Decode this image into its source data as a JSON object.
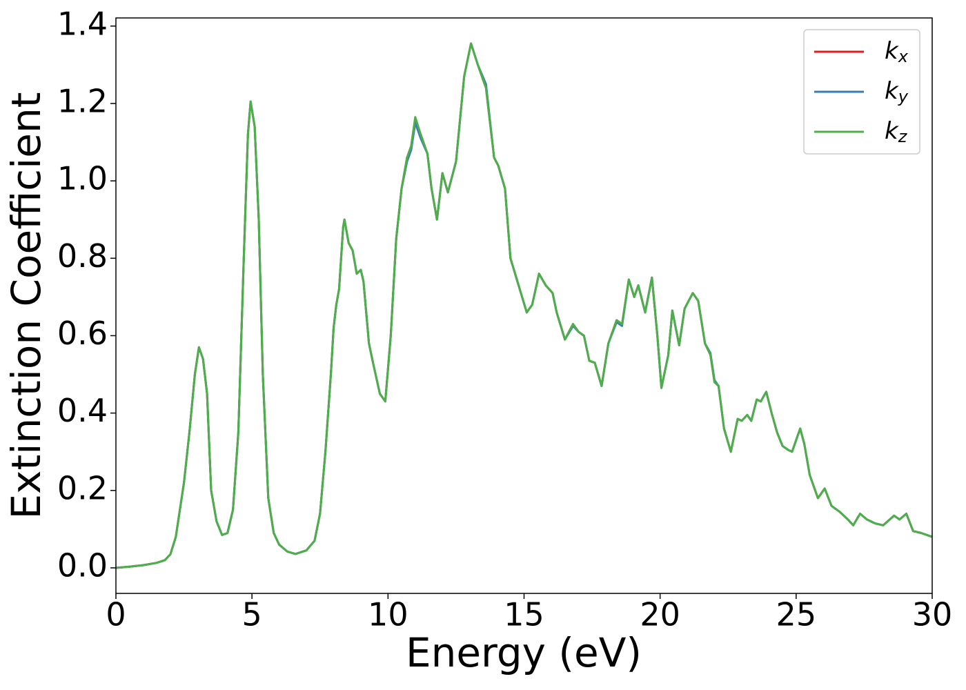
{
  "chart_data": {
    "type": "line",
    "xlabel": "Energy (eV)",
    "ylabel": "Extinction Coefficient",
    "xlim": [
      0,
      30
    ],
    "ylim": [
      -0.066,
      1.421
    ],
    "xticks": [
      0,
      5,
      10,
      15,
      20,
      25,
      30
    ],
    "yticks": [
      {
        "value": 0,
        "label": "0.0"
      },
      0.2,
      0.4,
      0.6,
      0.8,
      {
        "value": 1,
        "label": "1.0"
      },
      1.2,
      1.4
    ],
    "grid": false,
    "legend": "upper right",
    "x": [
      0,
      0.5,
      1.0,
      1.5,
      1.8,
      2.0,
      2.2,
      2.5,
      2.7,
      2.9,
      3.05,
      3.2,
      3.35,
      3.5,
      3.7,
      3.9,
      4.1,
      4.3,
      4.5,
      4.7,
      4.85,
      4.95,
      5.1,
      5.25,
      5.4,
      5.6,
      5.8,
      6.0,
      6.3,
      6.6,
      7.0,
      7.3,
      7.5,
      7.7,
      7.9,
      8.0,
      8.1,
      8.2,
      8.35,
      8.4,
      8.55,
      8.7,
      8.85,
      9.0,
      9.1,
      9.3,
      9.45,
      9.7,
      9.9,
      10.1,
      10.3,
      10.5,
      10.7,
      10.85,
      11.0,
      11.2,
      11.45,
      11.6,
      11.8,
      12.0,
      12.2,
      12.5,
      12.8,
      13.05,
      13.3,
      13.6,
      13.9,
      14.05,
      14.3,
      14.5,
      14.8,
      15.1,
      15.3,
      15.55,
      15.8,
      16.05,
      16.2,
      16.5,
      16.8,
      17.0,
      17.2,
      17.4,
      17.6,
      17.85,
      18.1,
      18.4,
      18.6,
      18.85,
      19.05,
      19.2,
      19.45,
      19.7,
      19.9,
      20.05,
      20.3,
      20.45,
      20.7,
      20.9,
      21.2,
      21.4,
      21.65,
      21.85,
      22.0,
      22.15,
      22.35,
      22.6,
      22.85,
      23.0,
      23.2,
      23.35,
      23.55,
      23.7,
      23.9,
      24.1,
      24.3,
      24.5,
      24.7,
      24.85,
      25.15,
      25.3,
      25.5,
      25.8,
      26.05,
      26.3,
      26.6,
      26.9,
      27.1,
      27.35,
      27.6,
      27.9,
      28.2,
      28.6,
      28.8,
      29.05,
      29.3,
      29.6,
      29.8,
      30
    ],
    "series": [
      {
        "name": "kx",
        "color": "#e41a1c",
        "values": [
          0,
          0.003,
          0.007,
          0.013,
          0.02,
          0.035,
          0.08,
          0.22,
          0.35,
          0.5,
          0.57,
          0.54,
          0.45,
          0.2,
          0.12,
          0.085,
          0.09,
          0.15,
          0.35,
          0.8,
          1.12,
          1.205,
          1.14,
          0.9,
          0.5,
          0.18,
          0.09,
          0.06,
          0.042,
          0.036,
          0.045,
          0.07,
          0.14,
          0.3,
          0.5,
          0.62,
          0.68,
          0.72,
          0.88,
          0.9,
          0.84,
          0.82,
          0.76,
          0.77,
          0.74,
          0.58,
          0.53,
          0.45,
          0.43,
          0.6,
          0.85,
          0.98,
          1.06,
          1.09,
          1.16,
          1.12,
          1.07,
          0.98,
          0.9,
          1.02,
          0.97,
          1.05,
          1.27,
          1.355,
          1.3,
          1.24,
          1.06,
          1.04,
          0.98,
          0.8,
          0.73,
          0.66,
          0.68,
          0.76,
          0.73,
          0.71,
          0.66,
          0.59,
          0.63,
          0.61,
          0.6,
          0.535,
          0.53,
          0.47,
          0.58,
          0.64,
          0.63,
          0.745,
          0.7,
          0.73,
          0.66,
          0.75,
          0.6,
          0.465,
          0.55,
          0.665,
          0.575,
          0.67,
          0.71,
          0.69,
          0.58,
          0.55,
          0.48,
          0.47,
          0.36,
          0.3,
          0.385,
          0.38,
          0.395,
          0.38,
          0.435,
          0.43,
          0.455,
          0.4,
          0.35,
          0.315,
          0.305,
          0.3,
          0.36,
          0.32,
          0.24,
          0.18,
          0.205,
          0.16,
          0.145,
          0.125,
          0.11,
          0.14,
          0.125,
          0.115,
          0.11,
          0.135,
          0.125,
          0.14,
          0.095,
          0.09,
          0.085,
          0.08
        ]
      },
      {
        "name": "ky",
        "color": "#377eb8",
        "values": [
          0,
          0.003,
          0.007,
          0.013,
          0.02,
          0.035,
          0.08,
          0.22,
          0.35,
          0.5,
          0.57,
          0.54,
          0.45,
          0.2,
          0.12,
          0.085,
          0.09,
          0.15,
          0.35,
          0.8,
          1.12,
          1.205,
          1.14,
          0.9,
          0.5,
          0.18,
          0.09,
          0.06,
          0.042,
          0.036,
          0.045,
          0.07,
          0.14,
          0.3,
          0.5,
          0.62,
          0.68,
          0.72,
          0.88,
          0.9,
          0.84,
          0.82,
          0.76,
          0.77,
          0.74,
          0.58,
          0.53,
          0.45,
          0.43,
          0.6,
          0.85,
          0.98,
          1.05,
          1.08,
          1.15,
          1.11,
          1.07,
          0.98,
          0.9,
          1.02,
          0.97,
          1.05,
          1.27,
          1.355,
          1.3,
          1.25,
          1.06,
          1.04,
          0.98,
          0.8,
          0.73,
          0.66,
          0.68,
          0.76,
          0.73,
          0.71,
          0.66,
          0.59,
          0.625,
          0.61,
          0.6,
          0.535,
          0.53,
          0.47,
          0.58,
          0.635,
          0.625,
          0.745,
          0.7,
          0.73,
          0.66,
          0.75,
          0.6,
          0.465,
          0.55,
          0.665,
          0.575,
          0.67,
          0.71,
          0.69,
          0.58,
          0.555,
          0.485,
          0.47,
          0.36,
          0.3,
          0.385,
          0.38,
          0.395,
          0.38,
          0.435,
          0.43,
          0.455,
          0.4,
          0.35,
          0.315,
          0.305,
          0.3,
          0.36,
          0.32,
          0.24,
          0.18,
          0.205,
          0.16,
          0.145,
          0.125,
          0.11,
          0.14,
          0.125,
          0.115,
          0.11,
          0.135,
          0.125,
          0.14,
          0.095,
          0.09,
          0.085,
          0.08
        ]
      },
      {
        "name": "kz",
        "color": "#4daf4a",
        "values": [
          0,
          0.003,
          0.007,
          0.013,
          0.02,
          0.035,
          0.08,
          0.22,
          0.35,
          0.5,
          0.57,
          0.54,
          0.45,
          0.2,
          0.12,
          0.085,
          0.09,
          0.15,
          0.35,
          0.8,
          1.12,
          1.205,
          1.14,
          0.9,
          0.5,
          0.18,
          0.09,
          0.06,
          0.042,
          0.036,
          0.045,
          0.07,
          0.14,
          0.3,
          0.5,
          0.62,
          0.68,
          0.72,
          0.88,
          0.9,
          0.84,
          0.82,
          0.76,
          0.77,
          0.74,
          0.58,
          0.53,
          0.45,
          0.43,
          0.6,
          0.85,
          0.98,
          1.06,
          1.09,
          1.165,
          1.12,
          1.07,
          0.98,
          0.9,
          1.02,
          0.97,
          1.05,
          1.27,
          1.355,
          1.3,
          1.24,
          1.06,
          1.04,
          0.98,
          0.8,
          0.73,
          0.66,
          0.68,
          0.76,
          0.73,
          0.71,
          0.66,
          0.59,
          0.63,
          0.61,
          0.6,
          0.535,
          0.53,
          0.47,
          0.58,
          0.64,
          0.63,
          0.745,
          0.7,
          0.73,
          0.66,
          0.75,
          0.6,
          0.465,
          0.55,
          0.665,
          0.575,
          0.67,
          0.71,
          0.69,
          0.58,
          0.55,
          0.48,
          0.47,
          0.36,
          0.3,
          0.385,
          0.38,
          0.395,
          0.38,
          0.435,
          0.43,
          0.455,
          0.4,
          0.35,
          0.315,
          0.305,
          0.3,
          0.36,
          0.32,
          0.24,
          0.18,
          0.205,
          0.16,
          0.145,
          0.125,
          0.11,
          0.14,
          0.125,
          0.115,
          0.11,
          0.135,
          0.125,
          0.14,
          0.095,
          0.09,
          0.085,
          0.08
        ]
      }
    ]
  }
}
